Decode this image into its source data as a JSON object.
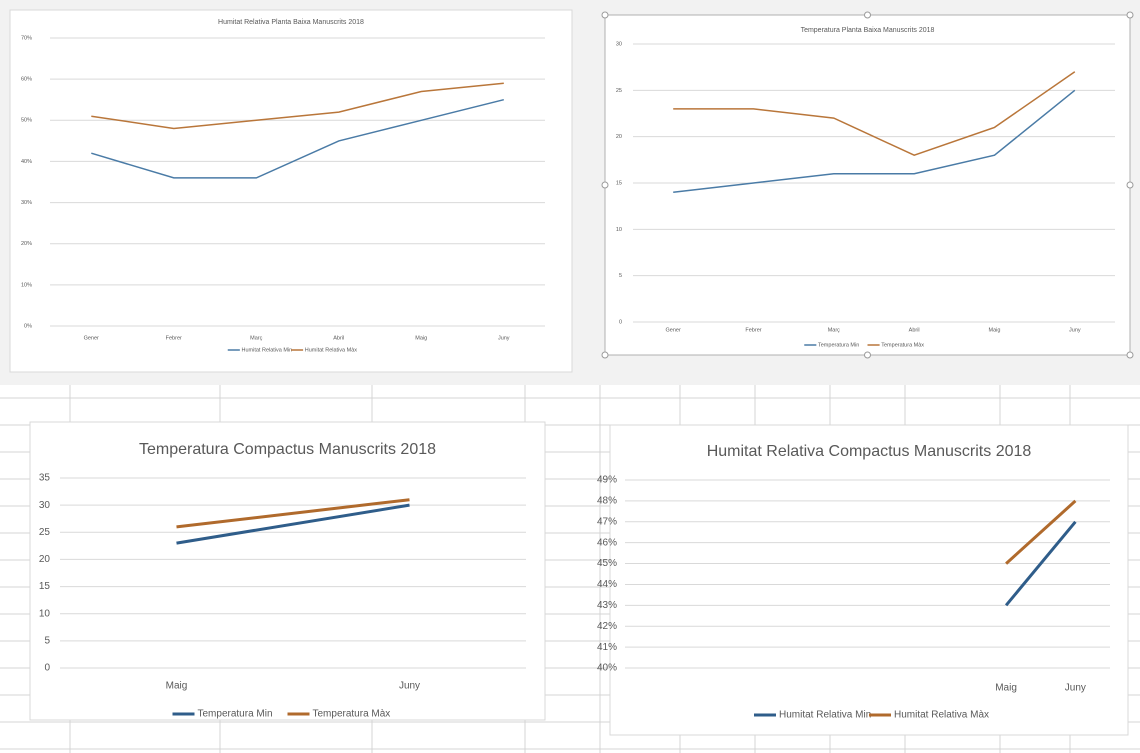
{
  "chart_data": [
    {
      "type": "line",
      "title": "Humitat Relativa Planta Baixa Manuscrits 2018",
      "categories": [
        "Gener",
        "Febrer",
        "Març",
        "Abril",
        "Maig",
        "Juny"
      ],
      "series": [
        {
          "name": "Humitat Relativa Min",
          "color": "#4a7ba6",
          "values": [
            42,
            36,
            36,
            45,
            50,
            55
          ]
        },
        {
          "name": "Humitat Relativa Màx",
          "color": "#b9763a",
          "values": [
            51,
            48,
            50,
            52,
            57,
            59
          ]
        }
      ],
      "ylim": [
        0,
        70
      ],
      "yticks": [
        {
          "value": 0,
          "label": "0%"
        },
        {
          "value": 10,
          "label": "10%"
        },
        {
          "value": 20,
          "label": "20%"
        },
        {
          "value": 30,
          "label": "30%"
        },
        {
          "value": 40,
          "label": "40%"
        },
        {
          "value": 50,
          "label": "50%"
        },
        {
          "value": 60,
          "label": "60%"
        },
        {
          "value": 70,
          "label": "70%"
        }
      ],
      "grid": true,
      "legend": "bottom"
    },
    {
      "type": "line",
      "title": "Temperatura Planta Baixa Manuscrits 2018",
      "categories": [
        "Gener",
        "Febrer",
        "Març",
        "Abril",
        "Maig",
        "Juny"
      ],
      "series": [
        {
          "name": "Temperatura Min",
          "color": "#4a7ba6",
          "values": [
            14,
            15,
            16,
            16,
            18,
            25
          ]
        },
        {
          "name": "Temperatura Màx",
          "color": "#b9763a",
          "values": [
            23,
            23,
            22,
            18,
            21,
            27
          ]
        }
      ],
      "ylim": [
        0,
        30
      ],
      "yticks": [
        0,
        5,
        10,
        15,
        20,
        25,
        30
      ],
      "grid": true,
      "legend": "bottom"
    },
    {
      "type": "line",
      "title": "Temperatura Compactus Manuscrits 2018",
      "categories": [
        "Maig",
        "Juny"
      ],
      "series": [
        {
          "name": "Temperatura Min",
          "color": "#2f5d8a",
          "values": [
            23,
            30
          ]
        },
        {
          "name": "Temperatura Màx",
          "color": "#b06a2c",
          "values": [
            26,
            31
          ]
        }
      ],
      "ylim": [
        0,
        35
      ],
      "yticks": [
        0,
        5,
        10,
        15,
        20,
        25,
        30,
        35
      ],
      "grid": true,
      "legend": "bottom"
    },
    {
      "type": "line",
      "title": "Humitat Relativa Compactus Manuscrits 2018",
      "categories": [
        null,
        null,
        null,
        null,
        null,
        "Maig",
        "Juny"
      ],
      "series": [
        {
          "name": "Humitat Relativa Min",
          "color": "#2f5d8a",
          "values": [
            null,
            null,
            null,
            null,
            null,
            43,
            47
          ]
        },
        {
          "name": "Humitat Relativa Màx",
          "color": "#b06a2c",
          "values": [
            null,
            null,
            null,
            null,
            null,
            45,
            48
          ]
        }
      ],
      "ylim": [
        40,
        49
      ],
      "yticks": [
        {
          "value": 40,
          "label": "40%"
        },
        {
          "value": 41,
          "label": "41%"
        },
        {
          "value": 42,
          "label": "42%"
        },
        {
          "value": 43,
          "label": "43%"
        },
        {
          "value": 44,
          "label": "44%"
        },
        {
          "value": 45,
          "label": "45%"
        },
        {
          "value": 46,
          "label": "46%"
        },
        {
          "value": 47,
          "label": "47%"
        },
        {
          "value": 48,
          "label": "48%"
        },
        {
          "value": 49,
          "label": "49%"
        }
      ],
      "grid": true,
      "legend": "bottom"
    }
  ]
}
